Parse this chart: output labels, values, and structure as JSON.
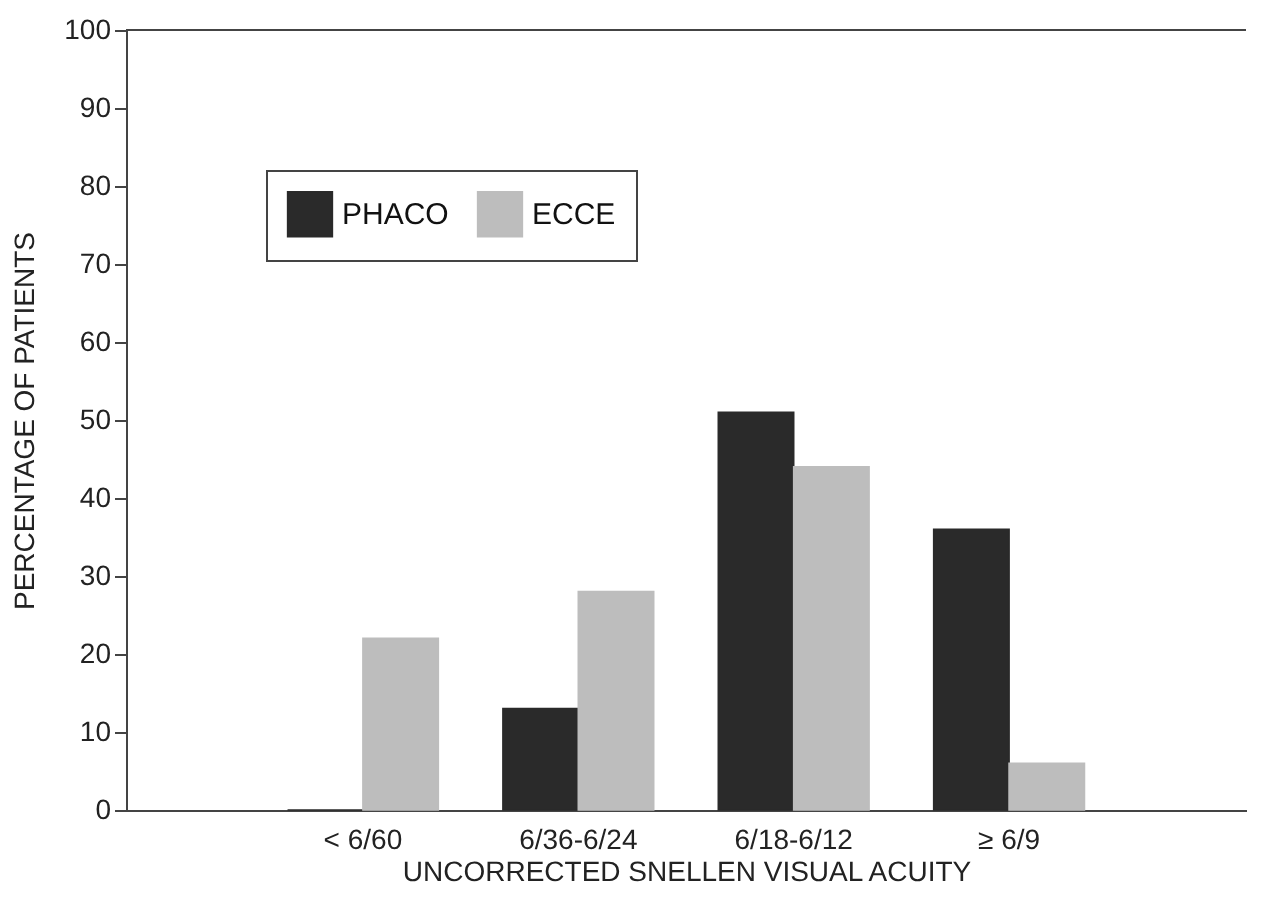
{
  "chart_data": {
    "type": "bar",
    "xlabel": "UNCORRECTED SNELLEN VISUAL ACUITY",
    "ylabel": "PERCENTAGE OF PATIENTS",
    "categories": [
      "< 6/60",
      "6/36-6/24",
      "6/18-6/12",
      "≥ 6/9"
    ],
    "series": [
      {
        "name": "PHACO",
        "color": "#2a2a2a",
        "values": [
          0,
          13,
          51,
          36
        ]
      },
      {
        "name": "ECCE",
        "color": "#bdbdbd",
        "values": [
          22,
          28,
          44,
          6
        ]
      }
    ],
    "ylim": [
      0,
      100
    ],
    "yticks": [
      0,
      10,
      20,
      30,
      40,
      50,
      60,
      70,
      80,
      90,
      100
    ],
    "grid": false,
    "legend": "top left"
  }
}
